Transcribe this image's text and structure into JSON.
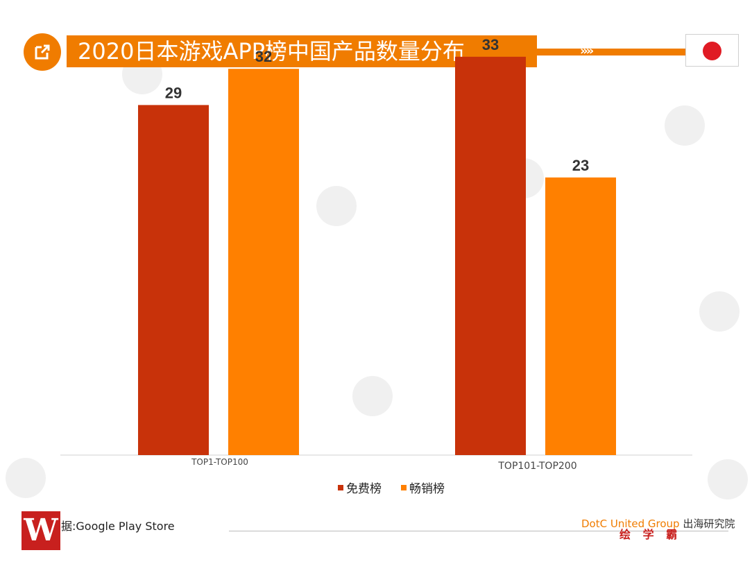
{
  "header": {
    "title": "2020日本游戏APP榜中国产品数量分布",
    "icon": "external-link-icon",
    "flag": "japan-flag",
    "chevrons": "»»"
  },
  "colors": {
    "accent": "#f07c00",
    "free": "#c8320a",
    "grossing": "#ff8000",
    "flag_red": "#e01b24"
  },
  "chart_data": {
    "type": "bar",
    "categories": [
      "TOP1-TOP100",
      "TOP101-TOP200"
    ],
    "series": [
      {
        "name": "免费榜",
        "values": [
          29,
          33
        ]
      },
      {
        "name": "畅销榜",
        "values": [
          32,
          23
        ]
      }
    ],
    "ylim": [
      0,
      35
    ],
    "grid": false,
    "legend": "bottom",
    "data_labels": true
  },
  "legend": {
    "items": [
      "免费榜",
      "畅销榜"
    ]
  },
  "footer": {
    "source": "据:Google Play Store",
    "brand_en": "DotC United Group",
    "brand_zh": "出海研究院",
    "stamp": "绘 学 霸"
  }
}
